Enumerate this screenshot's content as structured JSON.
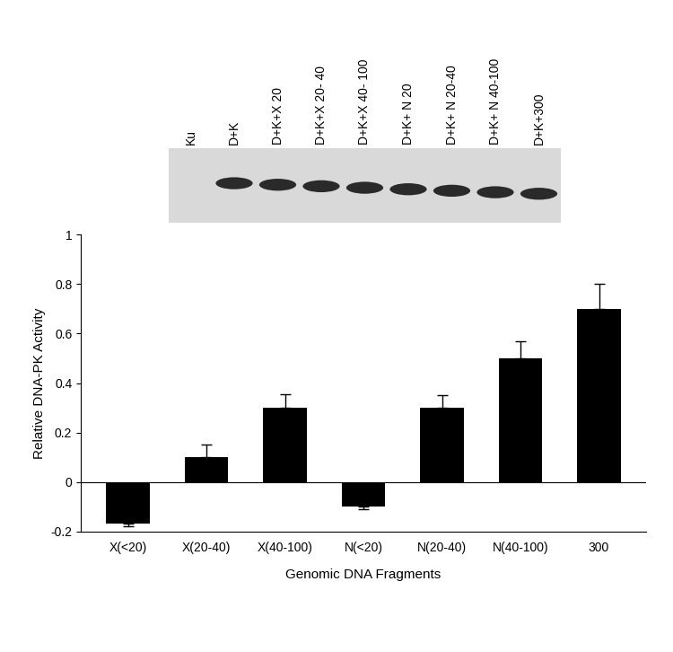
{
  "chart_data": {
    "type": "bar",
    "x_label": "Genomic DNA Fragments",
    "y_label": "Relative DNA-PK Activity",
    "categories": [
      "X(<20)",
      "X(20-40)",
      "X(40-100)",
      "N(<20)",
      "N(20-40)",
      "N(40-100)",
      "300"
    ],
    "values": [
      -0.17,
      0.1,
      0.3,
      -0.1,
      0.3,
      0.5,
      0.7
    ],
    "errors": [
      0.01,
      0.05,
      0.055,
      0.01,
      0.05,
      0.07,
      0.1
    ],
    "color": "#000000",
    "ylim": [
      -0.2,
      1
    ],
    "yticks": [
      -0.2,
      0,
      0.2,
      0.4,
      0.6,
      0.8,
      1
    ],
    "grid": false
  },
  "gel": {
    "lanes": [
      "Ku",
      "D+K",
      "D+K+X 20",
      "D+K+X 20- 40",
      "D+K+X 40- 100",
      "D+K+ N 20",
      "D+K+ N 20-40",
      "D+K+ N 40-100",
      "D+K+300"
    ]
  }
}
